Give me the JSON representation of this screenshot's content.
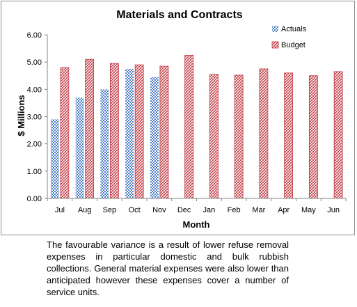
{
  "chart_data": {
    "type": "bar",
    "title": "Materials and Contracts",
    "xlabel": "Month",
    "ylabel": "$ Millions",
    "categories": [
      "Jul",
      "Aug",
      "Sep",
      "Oct",
      "Nov",
      "Dec",
      "Jan",
      "Feb",
      "Mar",
      "Apr",
      "May",
      "Jun"
    ],
    "series": [
      {
        "name": "Actuals",
        "color": "#4a7ec8",
        "pattern": "checker",
        "values": [
          2.9,
          3.7,
          4.0,
          4.75,
          4.45,
          null,
          null,
          null,
          null,
          null,
          null,
          null
        ]
      },
      {
        "name": "Budget",
        "color": "#c0343d",
        "pattern": "diagonal-weave",
        "values": [
          4.8,
          5.1,
          4.95,
          4.9,
          4.85,
          5.25,
          4.55,
          4.52,
          4.75,
          4.6,
          4.5,
          4.65
        ]
      }
    ],
    "ylim": [
      0,
      6
    ],
    "yticks": [
      "0.00",
      "1.00",
      "2.00",
      "3.00",
      "4.00",
      "5.00",
      "6.00"
    ],
    "grid": false,
    "legend": "top-right"
  },
  "caption": "The favourable variance is a result of lower refuse removal expenses in particular domestic and bulk rubbish collections. General material expenses were also lower than anticipated however these expenses cover a number of service units."
}
